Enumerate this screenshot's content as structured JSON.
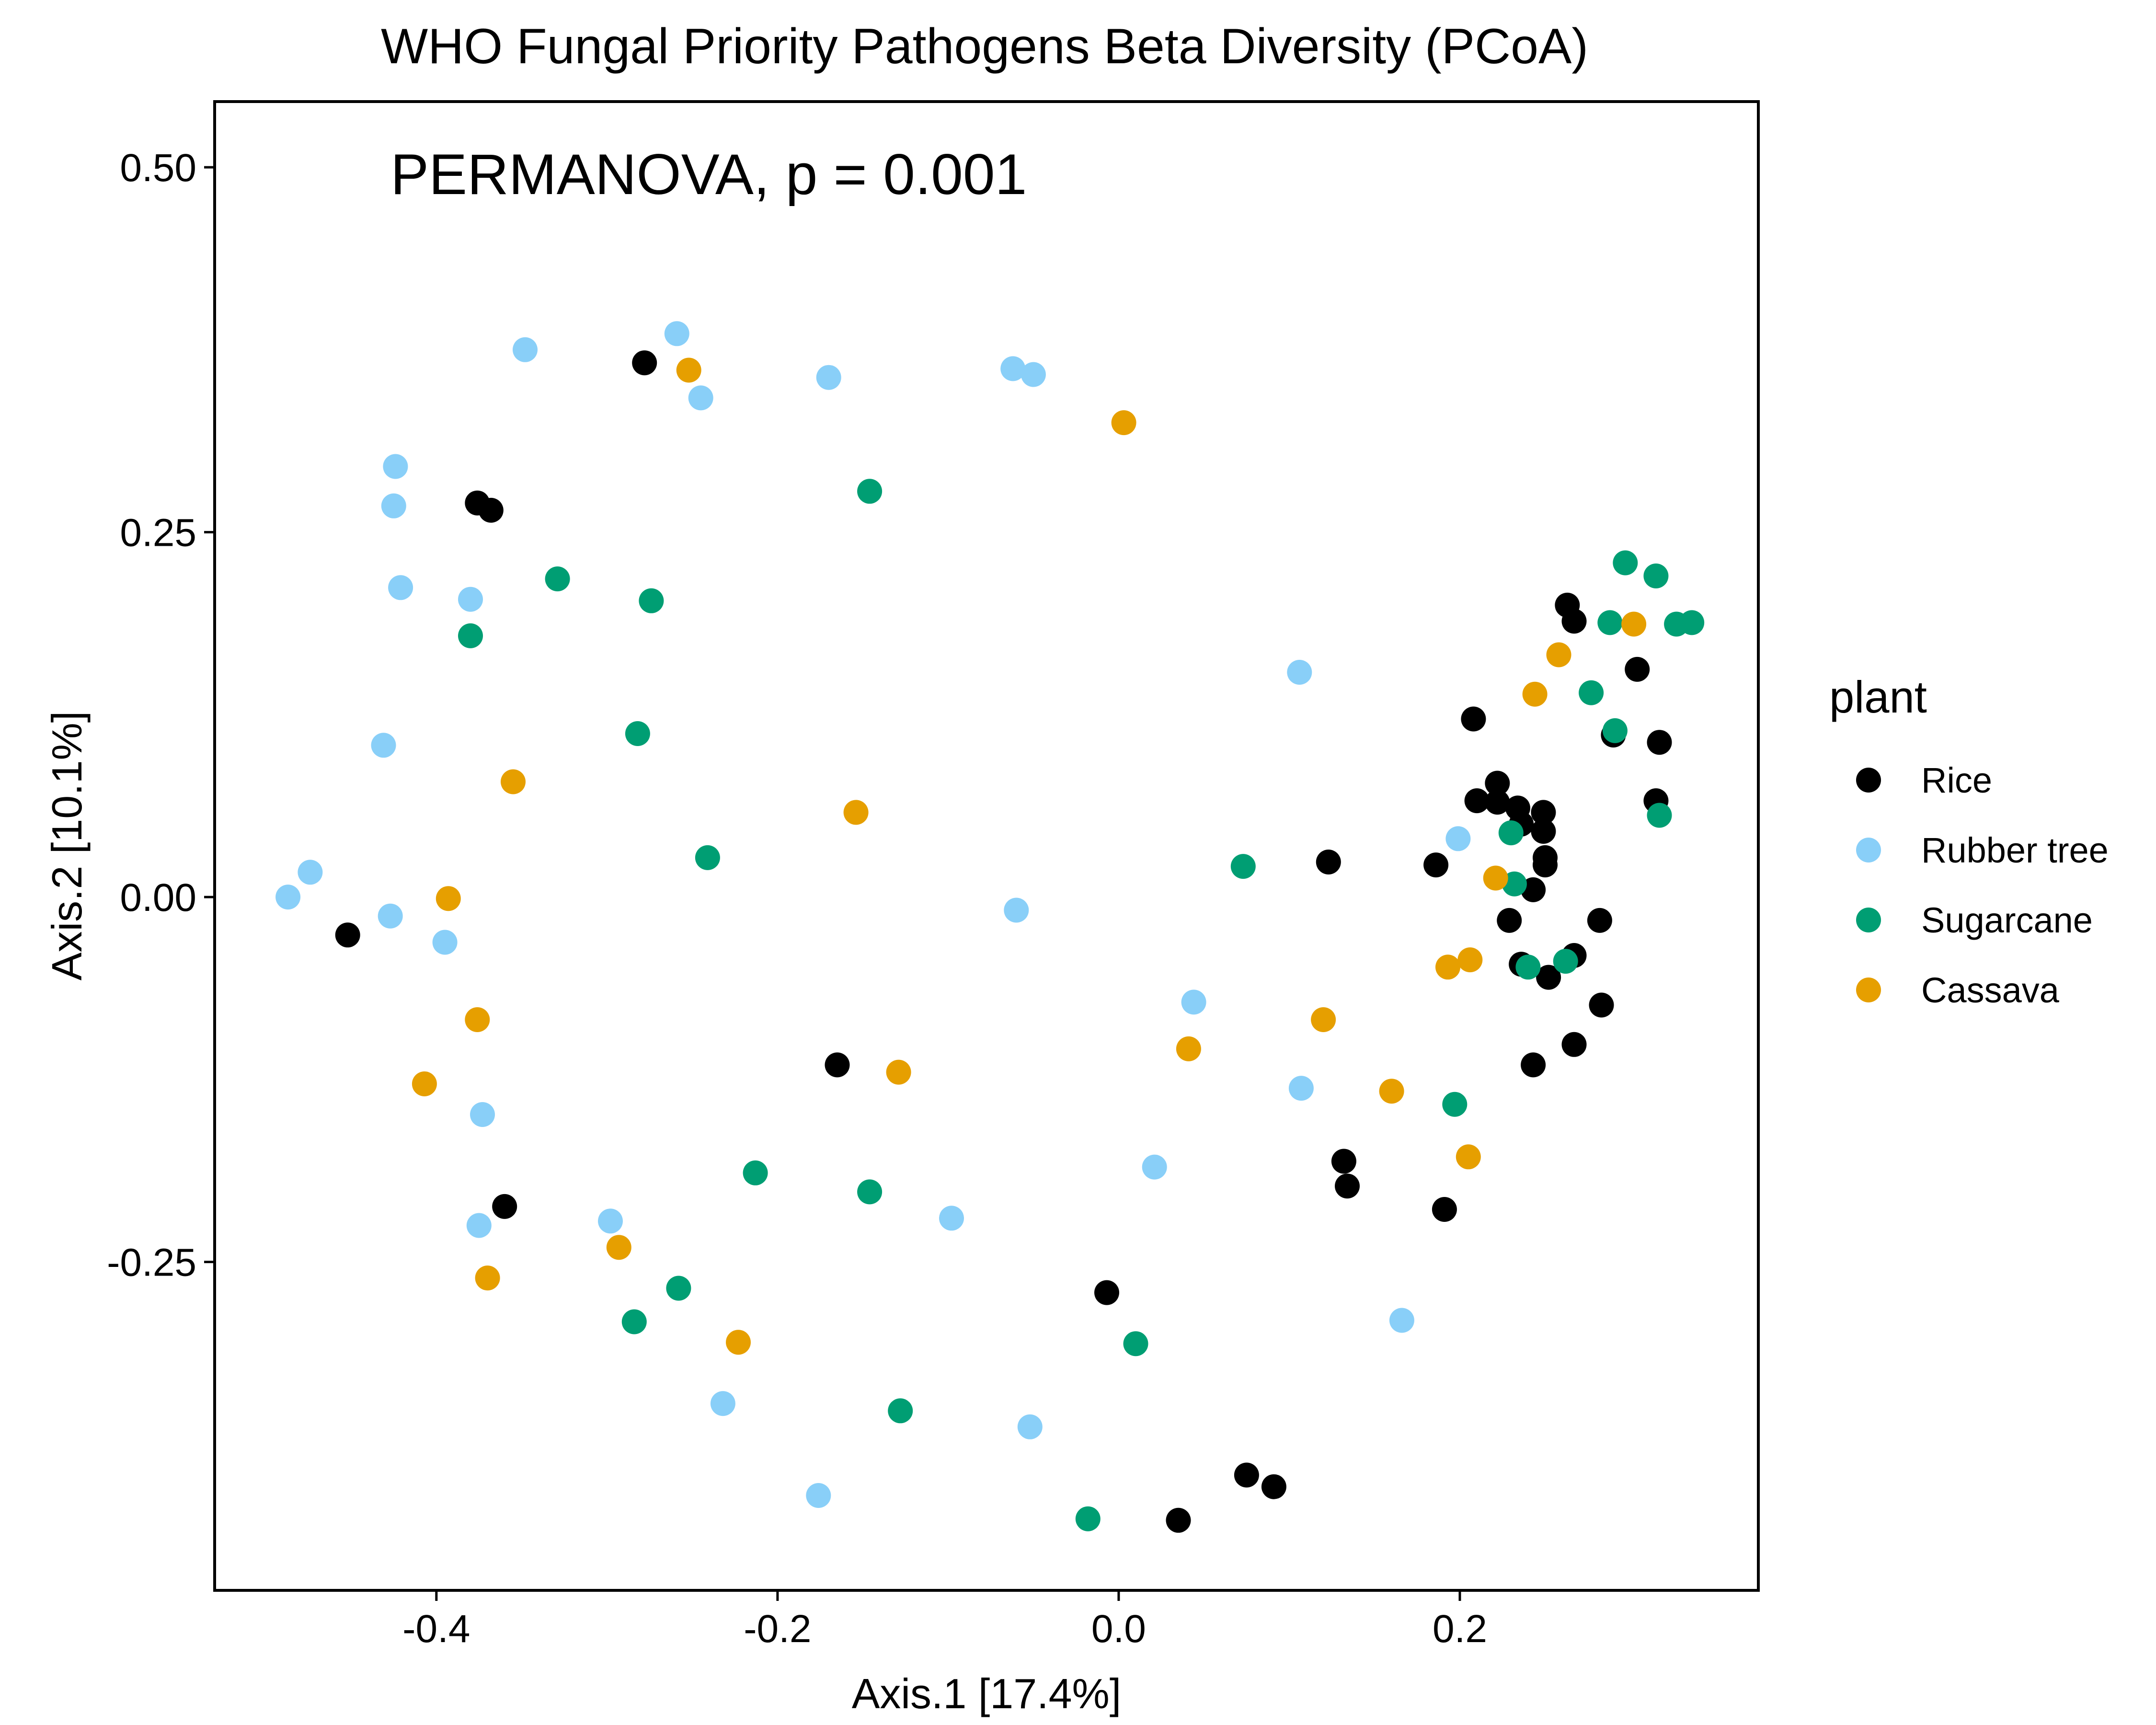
{
  "chart_data": {
    "type": "scatter",
    "title": "WHO Fungal Priority Pathogens Beta Diversity (PCoA)",
    "annotation": "PERMANOVA, p = 0.001",
    "xlabel": "Axis.1   [17.4%]",
    "ylabel": "Axis.2   [10.1%]",
    "xlim": [
      -0.53,
      0.375
    ],
    "ylim": [
      -0.475,
      0.545
    ],
    "xticks": [
      {
        "value": -0.4,
        "label": "-0.4"
      },
      {
        "value": -0.2,
        "label": "-0.2"
      },
      {
        "value": 0.0,
        "label": "0.0"
      },
      {
        "value": 0.2,
        "label": "0.2"
      }
    ],
    "yticks": [
      {
        "value": 0.5,
        "label": "0.50"
      },
      {
        "value": 0.25,
        "label": "0.25"
      },
      {
        "value": 0.0,
        "label": "0.00"
      },
      {
        "value": -0.25,
        "label": "-0.25"
      }
    ],
    "grid": false,
    "legend": {
      "title": "plant",
      "placement": "right"
    },
    "series": [
      {
        "name": "Rice",
        "color": "#000000",
        "points": [
          [
            -0.278,
            0.366
          ],
          [
            -0.376,
            0.27
          ],
          [
            -0.368,
            0.265
          ],
          [
            -0.452,
            -0.026
          ],
          [
            -0.36,
            -0.212
          ],
          [
            -0.165,
            -0.115
          ],
          [
            -0.007,
            -0.271
          ],
          [
            0.035,
            -0.427
          ],
          [
            0.075,
            -0.396
          ],
          [
            0.091,
            -0.404
          ],
          [
            0.123,
            0.024
          ],
          [
            0.132,
            -0.181
          ],
          [
            0.134,
            -0.198
          ],
          [
            0.186,
            0.022
          ],
          [
            0.191,
            -0.214
          ],
          [
            0.208,
            0.122
          ],
          [
            0.21,
            0.066
          ],
          [
            0.222,
            0.078
          ],
          [
            0.222,
            0.065
          ],
          [
            0.229,
            -0.016
          ],
          [
            0.234,
            0.061
          ],
          [
            0.236,
            0.05
          ],
          [
            0.236,
            -0.046
          ],
          [
            0.243,
            0.005
          ],
          [
            0.243,
            -0.115
          ],
          [
            0.249,
            0.058
          ],
          [
            0.249,
            0.045
          ],
          [
            0.25,
            0.027
          ],
          [
            0.25,
            0.022
          ],
          [
            0.252,
            -0.055
          ],
          [
            0.263,
            0.2
          ],
          [
            0.267,
            0.189
          ],
          [
            0.267,
            -0.04
          ],
          [
            0.267,
            -0.101
          ],
          [
            0.282,
            -0.016
          ],
          [
            0.283,
            -0.074
          ],
          [
            0.29,
            0.111
          ],
          [
            0.304,
            0.156
          ],
          [
            0.315,
            0.066
          ],
          [
            0.317,
            0.106
          ]
        ]
      },
      {
        "name": "Rubber tree",
        "color": "#89CFF8",
        "points": [
          [
            -0.259,
            0.386
          ],
          [
            -0.348,
            0.375
          ],
          [
            -0.17,
            0.356
          ],
          [
            -0.245,
            0.342
          ],
          [
            -0.062,
            0.362
          ],
          [
            -0.05,
            0.358
          ],
          [
            -0.424,
            0.295
          ],
          [
            -0.425,
            0.268
          ],
          [
            -0.421,
            0.212
          ],
          [
            -0.38,
            0.204
          ],
          [
            -0.431,
            0.104
          ],
          [
            -0.474,
            0.017
          ],
          [
            -0.487,
            0.0
          ],
          [
            -0.427,
            -0.013
          ],
          [
            -0.395,
            -0.031
          ],
          [
            -0.06,
            -0.009
          ],
          [
            -0.373,
            -0.149
          ],
          [
            -0.375,
            -0.225
          ],
          [
            -0.298,
            -0.222
          ],
          [
            -0.098,
            -0.22
          ],
          [
            0.021,
            -0.185
          ],
          [
            0.044,
            -0.072
          ],
          [
            0.106,
            0.154
          ],
          [
            0.107,
            -0.131
          ],
          [
            0.166,
            -0.29
          ],
          [
            0.199,
            0.04
          ],
          [
            -0.232,
            -0.347
          ],
          [
            -0.052,
            -0.363
          ],
          [
            -0.176,
            -0.41
          ]
        ]
      },
      {
        "name": "Sugarcane",
        "color": "#009E73",
        "points": [
          [
            -0.146,
            0.278
          ],
          [
            -0.329,
            0.218
          ],
          [
            -0.274,
            0.203
          ],
          [
            -0.38,
            0.179
          ],
          [
            -0.282,
            0.112
          ],
          [
            -0.241,
            0.027
          ],
          [
            -0.213,
            -0.189
          ],
          [
            -0.146,
            -0.202
          ],
          [
            -0.258,
            -0.268
          ],
          [
            -0.284,
            -0.291
          ],
          [
            -0.128,
            -0.352
          ],
          [
            -0.018,
            -0.426
          ],
          [
            0.01,
            -0.306
          ],
          [
            0.073,
            0.021
          ],
          [
            0.197,
            -0.142
          ],
          [
            0.23,
            0.044
          ],
          [
            0.232,
            0.009
          ],
          [
            0.24,
            -0.048
          ],
          [
            0.262,
            -0.044
          ],
          [
            0.277,
            0.14
          ],
          [
            0.288,
            0.188
          ],
          [
            0.291,
            0.114
          ],
          [
            0.297,
            0.229
          ],
          [
            0.315,
            0.22
          ],
          [
            0.317,
            0.056
          ],
          [
            0.327,
            0.187
          ],
          [
            0.336,
            0.188
          ]
        ]
      },
      {
        "name": "Cassava",
        "color": "#E69F00",
        "points": [
          [
            -0.252,
            0.361
          ],
          [
            0.003,
            0.325
          ],
          [
            -0.355,
            0.079
          ],
          [
            -0.154,
            0.058
          ],
          [
            -0.393,
            -0.001
          ],
          [
            -0.376,
            -0.084
          ],
          [
            -0.407,
            -0.128
          ],
          [
            -0.293,
            -0.24
          ],
          [
            -0.37,
            -0.261
          ],
          [
            -0.223,
            -0.305
          ],
          [
            -0.129,
            -0.12
          ],
          [
            0.041,
            -0.104
          ],
          [
            0.12,
            -0.084
          ],
          [
            0.16,
            -0.133
          ],
          [
            0.193,
            -0.048
          ],
          [
            0.206,
            -0.043
          ],
          [
            0.205,
            -0.178
          ],
          [
            0.221,
            0.013
          ],
          [
            0.244,
            0.139
          ],
          [
            0.258,
            0.166
          ],
          [
            0.302,
            0.187
          ]
        ]
      }
    ]
  }
}
